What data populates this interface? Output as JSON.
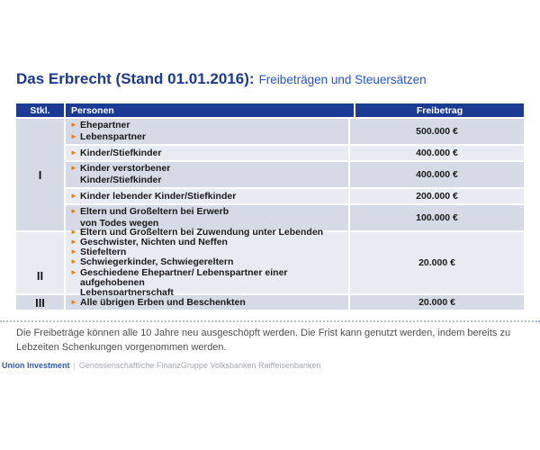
{
  "title": {
    "main": "Das Erbrecht (Stand 01.01.2016):",
    "sub": "Freibeträgen und Steuersätzen"
  },
  "icons": {
    "bullet": "►"
  },
  "table": {
    "headers": {
      "stkl": "Stkl.",
      "personen": "Personen",
      "freibetrag": "Freibetrag"
    },
    "groups": [
      {
        "label": "I",
        "rows": [
          {
            "lines": [
              {
                "text": "Ehepartner"
              },
              {
                "text": "Lebenspartner"
              }
            ],
            "amount": "500.000 €"
          },
          {
            "lines": [
              {
                "text": "Kinder/Stiefkinder"
              }
            ],
            "amount": "400.000 €"
          },
          {
            "lines": [
              {
                "text": "Kinder verstorbener"
              },
              {
                "text": "Kinder/Stiefkinder",
                "cont": true
              }
            ],
            "amount": "400.000 €"
          },
          {
            "lines": [
              {
                "text": "Kinder lebender Kinder/Stiefkinder"
              }
            ],
            "amount": "200.000 €"
          },
          {
            "lines": [
              {
                "text": "Eltern und Großeltern bei Erwerb"
              },
              {
                "text": "von Todes wegen",
                "cont": true
              }
            ],
            "amount": "100.000 €"
          }
        ]
      },
      {
        "label": "II",
        "rows": [
          {
            "lines": [
              {
                "text": "Eltern und Großeltern bei Zuwendung unter Lebenden"
              },
              {
                "text": "Geschwister, Nichten und Neffen"
              },
              {
                "text": "Stiefeltern"
              },
              {
                "text": "Schwiegerkinder, Schwiegereltern"
              },
              {
                "text": "Geschiedene Ehepartner/ Lebenspartner einer aufgehobenen"
              },
              {
                "text": "Lebenspartnerschaft",
                "cont": true
              }
            ],
            "amount": "20.000 €"
          }
        ]
      },
      {
        "label": "III",
        "rows": [
          {
            "lines": [
              {
                "text": "Alle übrigen Erben und Beschenkten"
              }
            ],
            "amount": "20.000 €"
          }
        ]
      }
    ]
  },
  "footnote": "Die Freibeträge können alle 10 Jahre neu ausgeschöpft werden. Die Frist kann genutzt werden, indem bereits zu Lebzeiten Schenkungen vorgenommen werden.",
  "footer": {
    "brand": "Union Investment",
    "separator": "|",
    "tagline": "Genossenschaftliche FinanzGruppe Volksbanken Raiffeisenbanken"
  },
  "colors": {
    "navy": "#1b3a94",
    "subtitle_blue": "#2254c8",
    "row_dark": "#d6dae6",
    "row_light": "#e9ebf3",
    "bullet_orange": "#ef7d00",
    "footnote_gray": "#4f4f4f",
    "brand_blue": "#2d5cb8",
    "tagline_gray": "#a4a7ae"
  }
}
